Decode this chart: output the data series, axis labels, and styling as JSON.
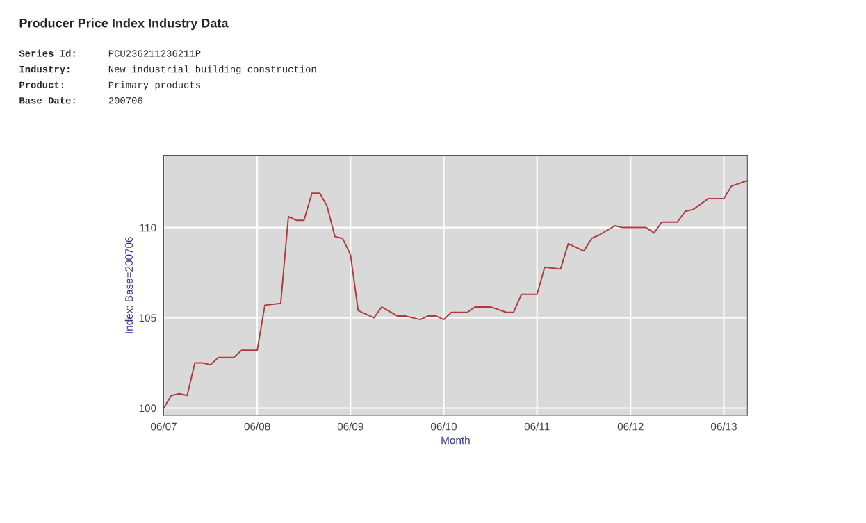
{
  "chart_data": {
    "type": "line",
    "title": "Producer Price Index Industry Data",
    "annotations": [
      "Series Id:",
      "PCU236211236211P",
      "Industry:",
      "New industrial building construction",
      "Product:",
      "Primary products",
      "Base Date:",
      "200706"
    ],
    "xlabel": "Month",
    "ylabel": "Index: Base=200706",
    "x": [
      "2007-06",
      "2007-07",
      "2007-08",
      "2007-09",
      "2007-10",
      "2007-11",
      "2007-12",
      "2008-01",
      "2008-03",
      "2008-04",
      "2008-06",
      "2008-07",
      "2008-09",
      "2008-10",
      "2008-11",
      "2008-12",
      "2009-01",
      "2009-02",
      "2009-03",
      "2009-04",
      "2009-05",
      "2009-06",
      "2009-07",
      "2009-09",
      "2009-10",
      "2009-12",
      "2010-01",
      "2010-03",
      "2010-04",
      "2010-05",
      "2010-06",
      "2010-07",
      "2010-09",
      "2010-10",
      "2010-12",
      "2011-02",
      "2011-03",
      "2011-04",
      "2011-06",
      "2011-07",
      "2011-09",
      "2011-10",
      "2011-12",
      "2012-01",
      "2012-02",
      "2012-04",
      "2012-05",
      "2012-08",
      "2012-09",
      "2012-10",
      "2012-12",
      "2013-01",
      "2013-02",
      "2013-04",
      "2013-06",
      "2013-07",
      "2013-09"
    ],
    "series": [
      {
        "color": "#b03a3a",
        "values": [
          100.0,
          100.7,
          100.8,
          100.7,
          102.5,
          102.5,
          102.4,
          102.8,
          102.8,
          103.2,
          103.2,
          105.7,
          105.8,
          110.6,
          110.4,
          110.4,
          111.9,
          111.9,
          111.2,
          109.5,
          109.4,
          108.5,
          105.4,
          105.0,
          105.6,
          105.1,
          105.1,
          104.9,
          105.1,
          105.1,
          104.9,
          105.3,
          105.3,
          105.6,
          105.6,
          105.3,
          105.3,
          106.3,
          106.3,
          107.8,
          107.7,
          109.1,
          108.7,
          109.4,
          109.6,
          110.1,
          110.0,
          110.0,
          109.7,
          110.3,
          110.3,
          110.9,
          111.0,
          111.6,
          111.6,
          112.3,
          112.6
        ]
      }
    ],
    "xlim": [
      "2007-06",
      "2013-09"
    ],
    "ylim": [
      99.6,
      114.0
    ],
    "xticks": [
      {
        "value": "2007-06",
        "label": "06/07"
      },
      {
        "value": "2008-06",
        "label": "06/08"
      },
      {
        "value": "2009-06",
        "label": "06/09"
      },
      {
        "value": "2010-06",
        "label": "06/10"
      },
      {
        "value": "2011-06",
        "label": "06/11"
      },
      {
        "value": "2012-06",
        "label": "06/12"
      },
      {
        "value": "2013-06",
        "label": "06/13"
      }
    ],
    "yticks": [
      100,
      105,
      110
    ],
    "grid": true,
    "line_style": "solid",
    "marker": "none"
  }
}
